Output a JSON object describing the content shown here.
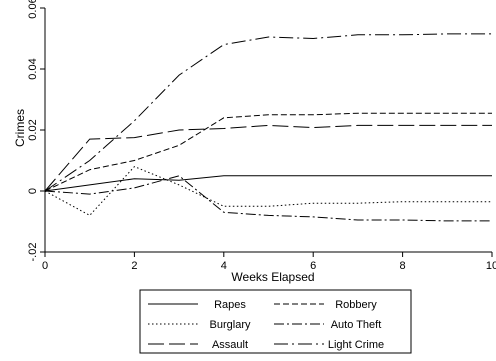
{
  "chart_data": {
    "type": "line",
    "title": "",
    "xlabel": "Weeks Elapsed",
    "ylabel": "Crimes",
    "xlim": [
      0,
      10
    ],
    "ylim": [
      -0.02,
      0.06
    ],
    "x_ticks": [
      0,
      2,
      4,
      6,
      8,
      10
    ],
    "y_ticks": [
      -0.02,
      0,
      0.02,
      0.04,
      0.06
    ],
    "x_tick_labels": [
      "0",
      "2",
      "4",
      "6",
      "8",
      "10"
    ],
    "y_tick_labels": [
      "-.02",
      "0",
      "0.02",
      "0.04",
      "0.06"
    ],
    "grid": false,
    "legend_position": "bottom",
    "series": [
      {
        "name": "Rapes",
        "dash": "solid",
        "x": [
          0,
          1,
          2,
          3,
          4,
          5,
          6,
          7,
          8,
          9,
          10
        ],
        "values": [
          0,
          0.002,
          0.004,
          0.0035,
          0.005,
          0.005,
          0.005,
          0.005,
          0.005,
          0.005,
          0.005
        ]
      },
      {
        "name": "Robbery",
        "dash": "dashed",
        "x": [
          0,
          1,
          2,
          3,
          4,
          5,
          6,
          7,
          8,
          9,
          10
        ],
        "values": [
          0,
          0.007,
          0.01,
          0.015,
          0.024,
          0.025,
          0.025,
          0.0255,
          0.0255,
          0.0255,
          0.0255
        ]
      },
      {
        "name": "Burglary",
        "dash": "dotted",
        "x": [
          0,
          1,
          2,
          3,
          4,
          5,
          6,
          7,
          8,
          9,
          10
        ],
        "values": [
          0,
          -0.008,
          0.008,
          0.002,
          -0.005,
          -0.005,
          -0.004,
          -0.004,
          -0.0035,
          -0.0035,
          -0.0035
        ]
      },
      {
        "name": "Auto Theft",
        "dash": "dashdot",
        "x": [
          0,
          1,
          2,
          3,
          4,
          5,
          6,
          7,
          8,
          9,
          10
        ],
        "values": [
          0,
          -0.001,
          0.001,
          0.005,
          -0.007,
          -0.008,
          -0.0085,
          -0.0095,
          -0.0095,
          -0.0098,
          -0.0098
        ]
      },
      {
        "name": "Assault",
        "dash": "longdash",
        "x": [
          0,
          1,
          2,
          3,
          4,
          5,
          6,
          7,
          8,
          9,
          10
        ],
        "values": [
          0,
          0.017,
          0.0175,
          0.02,
          0.0205,
          0.0215,
          0.0208,
          0.0215,
          0.0215,
          0.0215,
          0.0215
        ]
      },
      {
        "name": "Light Crime",
        "dash": "longdashdot",
        "x": [
          0,
          1,
          2,
          3,
          4,
          5,
          6,
          7,
          8,
          9,
          10
        ],
        "values": [
          0,
          0.01,
          0.023,
          0.038,
          0.048,
          0.0505,
          0.05,
          0.0512,
          0.0512,
          0.0515,
          0.0515
        ]
      }
    ],
    "legend": [
      [
        "Rapes",
        "Robbery"
      ],
      [
        "Burglary",
        "Auto Theft"
      ],
      [
        "Assault",
        "Light Crime"
      ]
    ],
    "colors": {
      "line": "#000000",
      "background": "#ffffff"
    }
  }
}
